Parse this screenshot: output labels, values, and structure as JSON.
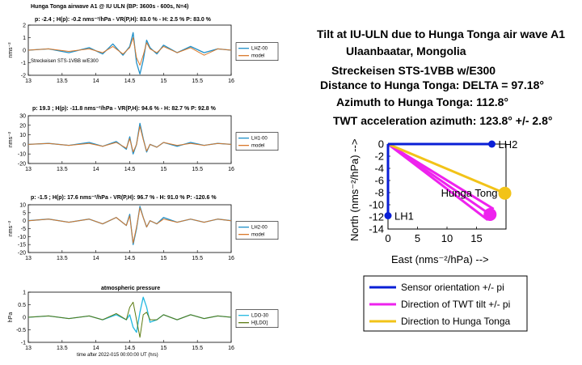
{
  "left_panels": {
    "suptitle": "Hunga Tonga airwave A1 @ IU ULN (BP: 3600s - 600s, N=4)",
    "xaxis_label": "time after 2022-015 00:00:00 UT (hrs)",
    "panels": [
      {
        "header": "p: -2.4 ; H(p): -0.2 nms⁻²/hPa - VR(P,H): 83.0 % - H:  2.5 % P: 83.0 %",
        "ylabel": "nms⁻²",
        "note": "Streckeisen STS-1VBB w/E300",
        "legend": [
          "LHZ-00",
          "model"
        ]
      },
      {
        "header": "p: 19.3 ; H(p): -11.8 nms⁻²/hPa - VR(P,H): 94.6 % - H: 82.7 % P: 92.8 %",
        "ylabel": "nms⁻²",
        "legend": [
          "LH1-00",
          "model"
        ]
      },
      {
        "header": "p: -1.5 ; H(p): 17.6 nms⁻²/hPa - VR(P,H): 96.7 % - H: 91.0 % P: -120.6 %",
        "ylabel": "nms⁻²",
        "legend": [
          "LH2-00",
          "model"
        ]
      },
      {
        "header": "atmospheric pressure",
        "ylabel": "hPa",
        "legend": [
          "LDO-30",
          "H[LDO]"
        ]
      }
    ]
  },
  "right": {
    "title_lines": [
      "Tilt at IU-ULN due to Hunga Tonga air wave A1",
      "Ulaanbaatar, Mongolia",
      "Streckeisen STS-1VBB w/E300",
      "Distance to Hunga Tonga:  DELTA =  97.18°",
      "Azimuth to Hunga Tonga: 112.8°",
      "TWT acceleration azimuth: 123.8° +/- 2.8°"
    ],
    "xlabel": "East (nms⁻²/hPa) -->",
    "ylabel": "North (nms⁻²/hPa) -->",
    "point_labels": [
      "LH2",
      "LH1",
      "Hunga Tong"
    ],
    "legend": [
      "Sensor orientation +/- pi",
      "Direction of TWT tilt +/- pi",
      "Direction to Hunga Tonga"
    ]
  },
  "colors": {
    "blue": "#0a1fd6",
    "magenta": "#ee22ee",
    "yellow": "#f2c318",
    "trace": "#1f8fc8",
    "model": "#d9782a",
    "pressure": "#22b8e0",
    "hldo": "#5a7a10"
  },
  "chart_data": [
    {
      "type": "line",
      "x_range": [
        13,
        16
      ],
      "x_ticks": [
        13,
        13.5,
        14,
        14.5,
        15,
        15.5,
        16
      ],
      "ylim": [
        -2,
        2
      ],
      "y_ticks": [
        -2,
        -1,
        0,
        1,
        2
      ],
      "series": [
        {
          "name": "LHZ-00",
          "x": [
            13,
            13.3,
            13.6,
            13.9,
            14.1,
            14.25,
            14.4,
            14.5,
            14.55,
            14.6,
            14.65,
            14.7,
            14.75,
            14.8,
            14.9,
            15,
            15.2,
            15.4,
            15.6,
            15.8,
            16
          ],
          "values": [
            0,
            0.1,
            -0.2,
            0.2,
            -0.3,
            0.5,
            -0.4,
            0.3,
            1.4,
            -1.0,
            -1.9,
            -0.8,
            0.8,
            0.2,
            -0.3,
            0.4,
            -0.2,
            0.3,
            -0.2,
            0.1,
            0
          ]
        },
        {
          "name": "model",
          "x": [
            13,
            13.3,
            13.6,
            13.9,
            14.1,
            14.25,
            14.4,
            14.5,
            14.55,
            14.6,
            14.65,
            14.7,
            14.75,
            14.8,
            14.9,
            15,
            15.2,
            15.4,
            15.6,
            15.8,
            16
          ],
          "values": [
            0,
            0.1,
            -0.1,
            0.1,
            -0.2,
            0.3,
            -0.3,
            0.2,
            1.0,
            -0.6,
            -1.2,
            -0.4,
            0.6,
            0.1,
            -0.2,
            0.3,
            -0.2,
            0.2,
            -0.4,
            0.1,
            0
          ]
        }
      ]
    },
    {
      "type": "line",
      "x_range": [
        13,
        16
      ],
      "x_ticks": [
        13,
        13.5,
        14,
        14.5,
        15,
        15.5,
        16
      ],
      "ylim": [
        -20,
        30
      ],
      "y_ticks": [
        -20,
        -10,
        0,
        10,
        20,
        30
      ],
      "series": [
        {
          "name": "LH1-00",
          "x": [
            13,
            13.3,
            13.6,
            13.9,
            14.1,
            14.3,
            14.45,
            14.5,
            14.55,
            14.6,
            14.65,
            14.7,
            14.75,
            14.8,
            14.9,
            15,
            15.2,
            15.4,
            15.6,
            15.8,
            16
          ],
          "values": [
            0,
            1,
            -1,
            2,
            -2,
            3,
            -5,
            8,
            -10,
            0,
            22,
            6,
            -8,
            0,
            -3,
            2,
            -2,
            2,
            -1,
            1,
            0
          ]
        },
        {
          "name": "model",
          "x": [
            13,
            13.3,
            13.6,
            13.9,
            14.1,
            14.3,
            14.45,
            14.5,
            14.55,
            14.6,
            14.65,
            14.7,
            14.75,
            14.8,
            14.9,
            15,
            15.2,
            15.4,
            15.6,
            15.8,
            16
          ],
          "values": [
            0,
            1,
            -1,
            1,
            -2,
            2,
            -4,
            6,
            -8,
            0,
            19,
            5,
            -7,
            0,
            -3,
            2,
            -1,
            1,
            -1,
            1,
            0
          ]
        }
      ]
    },
    {
      "type": "line",
      "x_range": [
        13,
        16
      ],
      "x_ticks": [
        13,
        13.5,
        14,
        14.5,
        15,
        15.5,
        16
      ],
      "ylim": [
        -20,
        10
      ],
      "y_ticks": [
        -20,
        -15,
        -10,
        -5,
        0,
        5,
        10
      ],
      "series": [
        {
          "name": "LH2-00",
          "x": [
            13,
            13.3,
            13.6,
            13.9,
            14.1,
            14.3,
            14.45,
            14.5,
            14.55,
            14.6,
            14.65,
            14.7,
            14.75,
            14.8,
            14.9,
            15,
            15.2,
            15.4,
            15.6,
            15.8,
            16
          ],
          "values": [
            0,
            1,
            -1,
            1,
            -2,
            2,
            -3,
            4,
            -15,
            -5,
            9,
            2,
            -4,
            0,
            -2,
            2,
            -1,
            1,
            -1,
            1,
            0
          ]
        },
        {
          "name": "model",
          "x": [
            13,
            13.3,
            13.6,
            13.9,
            14.1,
            14.3,
            14.45,
            14.5,
            14.55,
            14.6,
            14.65,
            14.7,
            14.75,
            14.8,
            14.9,
            15,
            15.2,
            15.4,
            15.6,
            15.8,
            16
          ],
          "values": [
            0,
            1,
            -1,
            1,
            -2,
            2,
            -3,
            3,
            -14,
            -4,
            8,
            2,
            -4,
            0,
            -2,
            1,
            -1,
            1,
            -1,
            1,
            0
          ]
        }
      ]
    },
    {
      "type": "line",
      "x_range": [
        13,
        16
      ],
      "x_ticks": [
        13,
        13.5,
        14,
        14.5,
        15,
        15.5,
        16
      ],
      "ylim": [
        -1,
        1
      ],
      "y_ticks": [
        -1,
        -0.5,
        0,
        0.5,
        1
      ],
      "series": [
        {
          "name": "LDO-30",
          "x": [
            13,
            13.3,
            13.6,
            13.9,
            14.1,
            14.3,
            14.45,
            14.5,
            14.55,
            14.6,
            14.65,
            14.7,
            14.75,
            14.8,
            14.9,
            15,
            15.2,
            15.4,
            15.6,
            15.8,
            16
          ],
          "values": [
            0,
            0.05,
            -0.05,
            0.05,
            -0.1,
            0.1,
            -0.1,
            0.1,
            -0.4,
            -0.6,
            0.2,
            0.8,
            0.4,
            -0.2,
            -0.1,
            0.1,
            -0.1,
            0.1,
            -0.05,
            0.05,
            0
          ]
        },
        {
          "name": "H[LDO]",
          "x": [
            13,
            13.3,
            13.6,
            13.9,
            14.1,
            14.3,
            14.45,
            14.5,
            14.55,
            14.6,
            14.65,
            14.7,
            14.75,
            14.8,
            14.9,
            15,
            15.2,
            15.4,
            15.6,
            15.8,
            16
          ],
          "values": [
            0,
            0.05,
            -0.05,
            0.05,
            -0.1,
            0.15,
            -0.1,
            0.4,
            0.6,
            -0.1,
            -0.8,
            0.1,
            0.2,
            -0.1,
            -0.1,
            0.1,
            -0.1,
            0.1,
            -0.05,
            0.05,
            0
          ]
        }
      ]
    },
    {
      "type": "scatter",
      "xlim": [
        0,
        20
      ],
      "ylim": [
        -14,
        0
      ],
      "x_ticks": [
        0,
        5,
        10,
        15
      ],
      "y_ticks": [
        0,
        -2,
        -4,
        -6,
        -8,
        -10,
        -12,
        -14
      ],
      "points": [
        {
          "label": "LH2",
          "x": 17.6,
          "y": 0
        },
        {
          "label": "LH1",
          "x": 0,
          "y": -11.8
        },
        {
          "label": "Hunga Tong",
          "x": 19.8,
          "y": -8.1
        }
      ],
      "twt_tip": {
        "x": 17.3,
        "y": -11.6
      }
    }
  ]
}
